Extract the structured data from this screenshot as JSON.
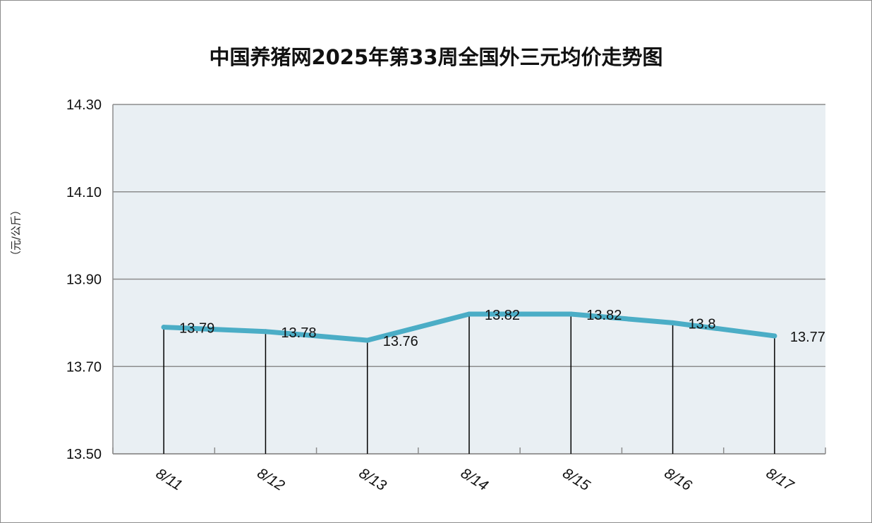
{
  "chart_data": {
    "type": "line",
    "title": "中国养猪网2025年第33周全国外三元均价走势图",
    "ylabel": "（元/公斤）",
    "xlabel": "",
    "categories": [
      "8/11",
      "8/12",
      "8/13",
      "8/14",
      "8/15",
      "8/16",
      "8/17"
    ],
    "values": [
      13.79,
      13.78,
      13.76,
      13.82,
      13.82,
      13.8,
      13.77
    ],
    "data_labels": [
      "13.79",
      "13.78",
      "13.76",
      "13.82",
      "13.82",
      "13.8",
      "13.77"
    ],
    "yticks": [
      "14.30",
      "14.10",
      "13.90",
      "13.70",
      "13.50"
    ],
    "ylim": [
      13.5,
      14.3
    ],
    "grid": true,
    "drop_lines": true,
    "colors": {
      "line": "#4badc6",
      "plot_bg": "#e9eff3",
      "grid": "#8c8c8c",
      "drop_line": "#000000"
    }
  }
}
